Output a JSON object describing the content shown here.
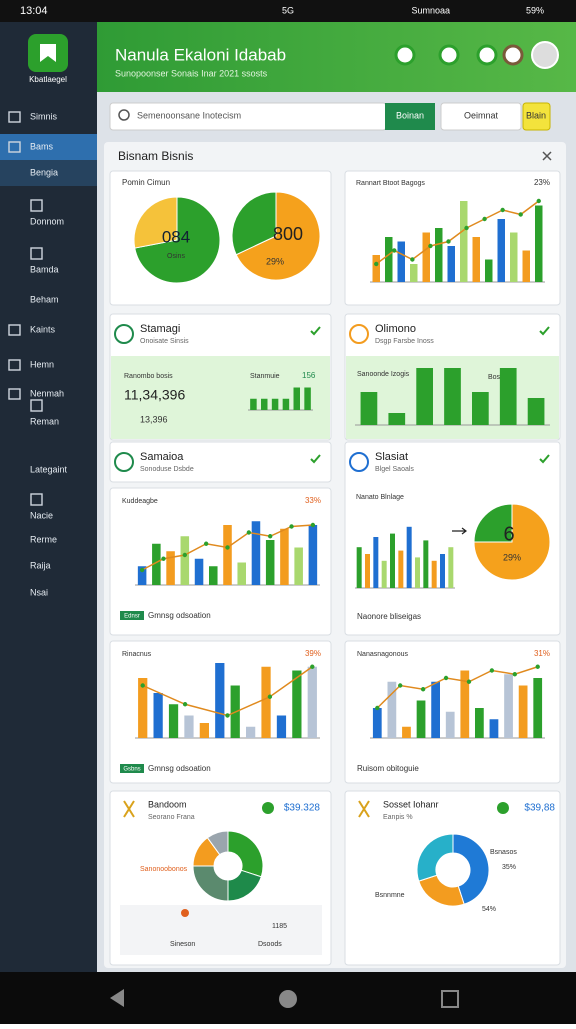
{
  "status_bar": {
    "time": "13:04",
    "network": "5G",
    "carrier": "Sumnoaa",
    "battery": "59%"
  },
  "sidebar": {
    "logo_label": "Kbatlaegel",
    "items": [
      "Simnis",
      "Bams",
      "Bengia",
      "Donnom",
      "Bamda",
      "Beham",
      "Kaints",
      "Hemn",
      "Nenmah",
      "Reman",
      "Lategaint",
      "Nacie",
      "Rerme",
      "Raija",
      "Nsai"
    ]
  },
  "header": {
    "title": "Nanula Ekaloni Idabab",
    "subtitle": "Sunopoonser Sonais Inar 2021 ssosts"
  },
  "toolbar": {
    "search_placeholder": "Semenoonsane Inotecism",
    "search_button": "Boinan",
    "filter": "Oeimnat",
    "action": "Blain"
  },
  "panel": {
    "title": "Bisnam Bisnis"
  },
  "cards": [
    {
      "title": "Pomin Cimun",
      "pies": [
        {
          "values": [
            72,
            28
          ],
          "colors": [
            "#2ca02c",
            "#f5c23a"
          ],
          "label": "084",
          "sublabel": "Osins"
        },
        {
          "values": [
            68,
            32
          ],
          "colors": [
            "#f5a11c",
            "#2ca02c"
          ],
          "label": "800",
          "sublabel": "29%"
        }
      ]
    },
    {
      "title": "Rannart Btoot Bagogs",
      "value": "23%",
      "chart": {
        "ylim": [
          0,
          100
        ],
        "colors": [
          "#f39c1f",
          "#2ca02c",
          "#1f6fd1",
          "#a9d86e"
        ],
        "bars": [
          30,
          50,
          45,
          20,
          55,
          60,
          40,
          90,
          50,
          25,
          70,
          55,
          35,
          85
        ],
        "line": [
          20,
          35,
          25,
          40,
          45,
          60,
          70,
          80,
          75,
          90
        ]
      }
    },
    {
      "title": "Stamagi",
      "subtitle": "Onoisate Sinsis",
      "strip_label": "Ranombo bosis",
      "strip_tag": "Stanmuie",
      "strip_value": "156",
      "metric": "11,34,396",
      "metric_sub": "13,396",
      "chart": {
        "ylim": [
          0,
          100
        ],
        "colors": [
          "#2ca02c"
        ],
        "bars": [
          45,
          45,
          45,
          45,
          90,
          90
        ]
      }
    },
    {
      "title": "Olimono",
      "subtitle": "Dsgp Farsbe Inoss",
      "strip_label": "Sanoonde Izogis",
      "strip_tag": "Bossis",
      "chart": {
        "ylim": [
          0,
          100
        ],
        "colors": [
          "#2ca02c"
        ],
        "bars": [
          55,
          20,
          95,
          95,
          55,
          95,
          45
        ]
      }
    },
    {
      "title": "Samaioa",
      "subtitle": "Sonoduse Dsbde"
    },
    {
      "title": "Slasiat",
      "subtitle": "Blgel Saoals",
      "chart_title": "Nanato Blnlage",
      "footer": "Naonore bliseigas",
      "chart": {
        "ylim": [
          0,
          100
        ],
        "colors": [
          "#2ca02c",
          "#f39c1f",
          "#1f6fd1",
          "#a9d86e"
        ],
        "bars": [
          60,
          50,
          75,
          40,
          80,
          55,
          90,
          45,
          70,
          40,
          50,
          60
        ]
      },
      "pie": {
        "values": [
          75,
          25
        ],
        "colors": [
          "#f5a11c",
          "#2ca02c"
        ],
        "label": "6",
        "sublabel": "29%"
      }
    },
    {
      "title": "Kuddeagbe",
      "value": "33%",
      "tag": "Ednsr",
      "footer": "Gmnsg odsoation",
      "chart": {
        "ylim": [
          0,
          100
        ],
        "colors": [
          "#1f6fd1",
          "#2ca02c",
          "#f39c1f",
          "#a9d86e"
        ],
        "bars": [
          25,
          55,
          45,
          65,
          35,
          25,
          80,
          30,
          85,
          60,
          75,
          50,
          80
        ],
        "line": [
          20,
          35,
          40,
          55,
          50,
          70,
          65,
          78,
          80
        ]
      }
    },
    {
      "title": "Rinacnus",
      "value": "39%",
      "tag": "Gsbns",
      "footer": "Gmnsg odsoation",
      "chart": {
        "ylim": [
          0,
          100
        ],
        "colors": [
          "#f39c1f",
          "#1f6fd1",
          "#2ca02c",
          "#b7c4d6"
        ],
        "bars": [
          80,
          60,
          45,
          30,
          20,
          100,
          70,
          15,
          95,
          30,
          90,
          95
        ],
        "line": [
          70,
          45,
          30,
          55,
          95
        ]
      }
    },
    {
      "title": "Nanasnagonous",
      "value": "31%",
      "footer": "Ruisom obitoguie",
      "chart": {
        "ylim": [
          0,
          100
        ],
        "colors": [
          "#1f6fd1",
          "#b7c4d6",
          "#f39c1f",
          "#2ca02c"
        ],
        "bars": [
          40,
          75,
          15,
          50,
          75,
          35,
          90,
          40,
          25,
          85,
          70,
          80
        ],
        "line": [
          40,
          70,
          65,
          80,
          75,
          90,
          85,
          95
        ]
      }
    },
    {
      "title": "Bandoom",
      "subtitle": "Seorano Frana",
      "value": "$39.328",
      "callout": "Sanonoobonos",
      "stats": [
        "Sineson",
        "Dsoods",
        "1185"
      ],
      "pie": {
        "values": [
          30,
          20,
          25,
          15,
          10
        ],
        "colors": [
          "#2ca02c",
          "#1e8a4a",
          "#5b8a6e",
          "#f39c1f",
          "#9aa5ad"
        ]
      }
    },
    {
      "title": "Sosset Iohanr",
      "subtitle": "Eanpis %",
      "value": "$39,88",
      "callouts": [
        "Bsnasos",
        "35%",
        "Bsnnmne",
        "54%"
      ],
      "pie": {
        "values": [
          45,
          25,
          30
        ],
        "colors": [
          "#1f7ad6",
          "#f39c1f",
          "#27b0c9"
        ]
      }
    }
  ]
}
